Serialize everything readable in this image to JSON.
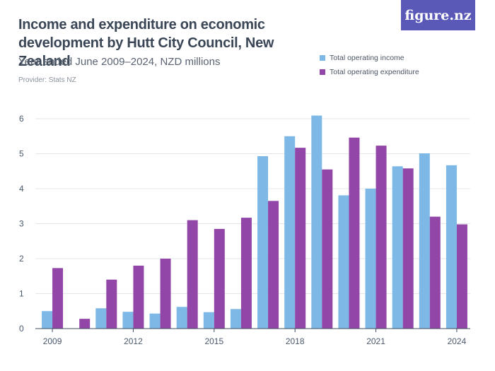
{
  "title": "Income and expenditure on economic development by Hutt City Council, New Zealand",
  "subtitle": "Year ended June 2009–2024, NZD millions",
  "provider": "Provider: Stats NZ",
  "brand": "figure.nz",
  "colors": {
    "income": "#7db8e6",
    "expenditure": "#9247a8",
    "brand": "#5a59b8"
  },
  "chart_data": {
    "type": "bar",
    "title": "Income and expenditure on economic development by Hutt City Council, New Zealand",
    "xlabel": "",
    "ylabel": "NZD millions",
    "ylim": [
      0,
      6.2
    ],
    "yticks": [
      0,
      1,
      2,
      3,
      4,
      5,
      6
    ],
    "categories": [
      "2009",
      "2010",
      "2011",
      "2012",
      "2013",
      "2014",
      "2015",
      "2016",
      "2017",
      "2018",
      "2019",
      "2020",
      "2021",
      "2022",
      "2023",
      "2024"
    ],
    "xtick_labels": [
      "2009",
      "2012",
      "2015",
      "2018",
      "2021",
      "2024"
    ],
    "legend_position": "top-right",
    "series": [
      {
        "name": "Total operating income",
        "values": [
          0.5,
          0.0,
          0.58,
          0.48,
          0.43,
          0.62,
          0.47,
          0.56,
          4.93,
          5.5,
          6.09,
          3.81,
          4.0,
          4.64,
          5.01,
          4.67
        ]
      },
      {
        "name": "Total operating expenditure",
        "values": [
          1.73,
          0.28,
          1.4,
          1.8,
          2.0,
          3.1,
          2.85,
          3.17,
          3.65,
          5.17,
          4.55,
          5.46,
          5.23,
          4.58,
          3.2,
          2.98
        ]
      }
    ]
  }
}
